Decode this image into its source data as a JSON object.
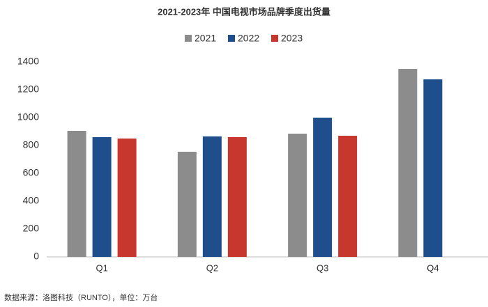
{
  "chart_data": {
    "type": "bar",
    "title": "2021-2023年 中国电视市场品牌季度出货量",
    "categories": [
      "Q1",
      "Q2",
      "Q3",
      "Q4"
    ],
    "series": [
      {
        "name": "2021",
        "color": "#8c8c8c",
        "values": [
          905,
          755,
          885,
          1350
        ]
      },
      {
        "name": "2022",
        "color": "#1f4e8c",
        "values": [
          860,
          865,
          1000,
          1275
        ]
      },
      {
        "name": "2023",
        "color": "#c8372d",
        "values": [
          850,
          860,
          870,
          null
        ]
      }
    ],
    "ylim": [
      0,
      1400
    ],
    "yticks": [
      0,
      200,
      400,
      600,
      800,
      1000,
      1200,
      1400
    ],
    "grid": false,
    "legend": "top",
    "footnote": "数据来源：洛图科技（RUNTO），单位：万台"
  }
}
